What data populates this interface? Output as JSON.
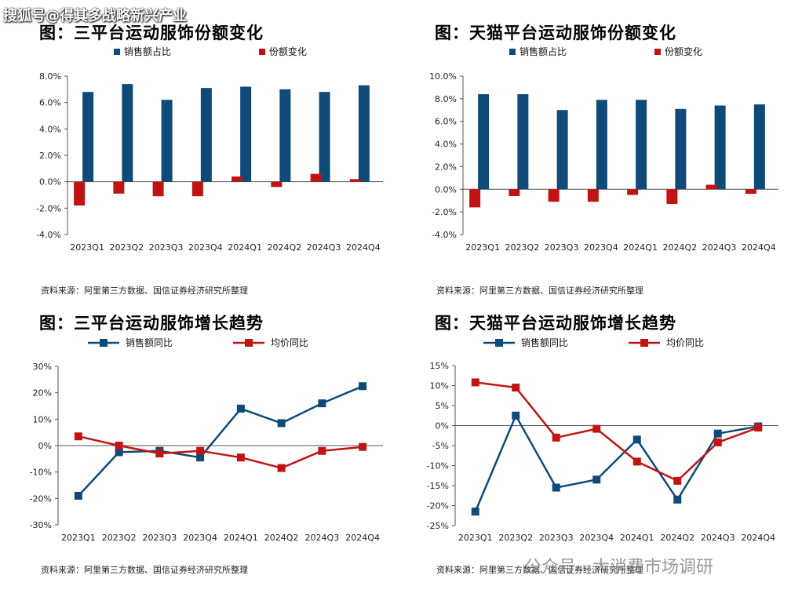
{
  "watermark": {
    "top": "搜狐号@得其多战略新兴产业",
    "bottom": "公众号 · 大消费市场调研"
  },
  "colors": {
    "blue": "#0f4a78",
    "red": "#c01414"
  },
  "charts": [
    {
      "title": "图：三平台运动服饰份额变化",
      "source": "资料来源：阿里第三方数据、国信证券经济研究所整理"
    },
    {
      "title": "图：天猫平台运动服饰份额变化",
      "source": "资料来源：阿里第三方数据、国信证券经济研究所整理"
    },
    {
      "title": "图：三平台运动服饰增长趋势",
      "source": "资料来源：阿里第三方数据、国信证券经济研究所整理"
    },
    {
      "title": "图：天猫平台运动服饰增长趋势",
      "source": "资料来源：阿里第三方数据、国信证券经济研究所整理"
    }
  ],
  "chart_data": [
    {
      "type": "bar",
      "title": "图：三平台运动服饰份额变化",
      "categories": [
        "2023Q1",
        "2023Q2",
        "2023Q3",
        "2023Q4",
        "2024Q1",
        "2024Q2",
        "2024Q3",
        "2024Q4"
      ],
      "series": [
        {
          "name": "销售额占比",
          "values": [
            6.8,
            7.4,
            6.2,
            7.1,
            7.2,
            7.0,
            6.8,
            7.3
          ]
        },
        {
          "name": "份额变化",
          "values": [
            -1.8,
            -0.9,
            -1.1,
            -1.1,
            0.4,
            -0.4,
            0.6,
            0.2
          ]
        }
      ],
      "ylim": [
        -4,
        8
      ],
      "yticks": [
        8,
        6,
        4,
        2,
        0,
        -2,
        -4
      ],
      "ytick_labels": [
        "8.0%",
        "6.0%",
        "4.0%",
        "2.0%",
        "0.0%",
        "-2.0%",
        "-4.0%"
      ],
      "xlabel": "",
      "ylabel": ""
    },
    {
      "type": "bar",
      "title": "图：天猫平台运动服饰份额变化",
      "categories": [
        "2023Q1",
        "2023Q2",
        "2023Q3",
        "2023Q4",
        "2024Q1",
        "2024Q2",
        "2024Q3",
        "2024Q4"
      ],
      "series": [
        {
          "name": "销售额占比",
          "values": [
            8.4,
            8.4,
            7.0,
            7.9,
            7.9,
            7.1,
            7.4,
            7.5
          ]
        },
        {
          "name": "份额变化",
          "values": [
            -1.6,
            -0.6,
            -1.1,
            -1.1,
            -0.5,
            -1.3,
            0.4,
            -0.4
          ]
        }
      ],
      "ylim": [
        -4,
        10
      ],
      "yticks": [
        10,
        8,
        6,
        4,
        2,
        0,
        -2,
        -4
      ],
      "ytick_labels": [
        "10.0%",
        "8.0%",
        "6.0%",
        "4.0%",
        "2.0%",
        "0.0%",
        "-2.0%",
        "-4.0%"
      ],
      "xlabel": "",
      "ylabel": ""
    },
    {
      "type": "line",
      "title": "图：三平台运动服饰增长趋势",
      "categories": [
        "2023Q1",
        "2023Q2",
        "2023Q3",
        "2023Q4",
        "2024Q1",
        "2024Q2",
        "2024Q3",
        "2024Q4"
      ],
      "series": [
        {
          "name": "销售额同比",
          "values": [
            -19,
            -2.5,
            -2,
            -4.5,
            14,
            8.5,
            16,
            22.5
          ]
        },
        {
          "name": "均价同比",
          "values": [
            3.5,
            0,
            -3,
            -2,
            -4.5,
            -8.5,
            -2,
            -0.5
          ]
        }
      ],
      "ylim": [
        -30,
        30
      ],
      "yticks": [
        30,
        20,
        10,
        0,
        -10,
        -20,
        -30
      ],
      "ytick_labels": [
        "30%",
        "20%",
        "10%",
        "0%",
        "-10%",
        "-20%",
        "-30%"
      ],
      "xlabel": "",
      "ylabel": ""
    },
    {
      "type": "line",
      "title": "图：天猫平台运动服饰增长趋势",
      "categories": [
        "2023Q1",
        "2023Q2",
        "2023Q3",
        "2023Q4",
        "2024Q1",
        "2024Q2",
        "2024Q3",
        "2024Q4"
      ],
      "series": [
        {
          "name": "销售额同比",
          "values": [
            -21.5,
            2.5,
            -15.5,
            -13.5,
            -3.5,
            -18.5,
            -2,
            -0.2
          ]
        },
        {
          "name": "均价同比",
          "values": [
            10.8,
            9.5,
            -3,
            -0.8,
            -9,
            -13.8,
            -4.2,
            -0.5
          ]
        }
      ],
      "ylim": [
        -25,
        15
      ],
      "yticks": [
        15,
        10,
        5,
        0,
        -5,
        -10,
        -15,
        -20,
        -25
      ],
      "ytick_labels": [
        "15%",
        "10%",
        "5%",
        "0%",
        "-5%",
        "-10%",
        "-15%",
        "-20%",
        "-25%"
      ],
      "xlabel": "",
      "ylabel": ""
    }
  ]
}
